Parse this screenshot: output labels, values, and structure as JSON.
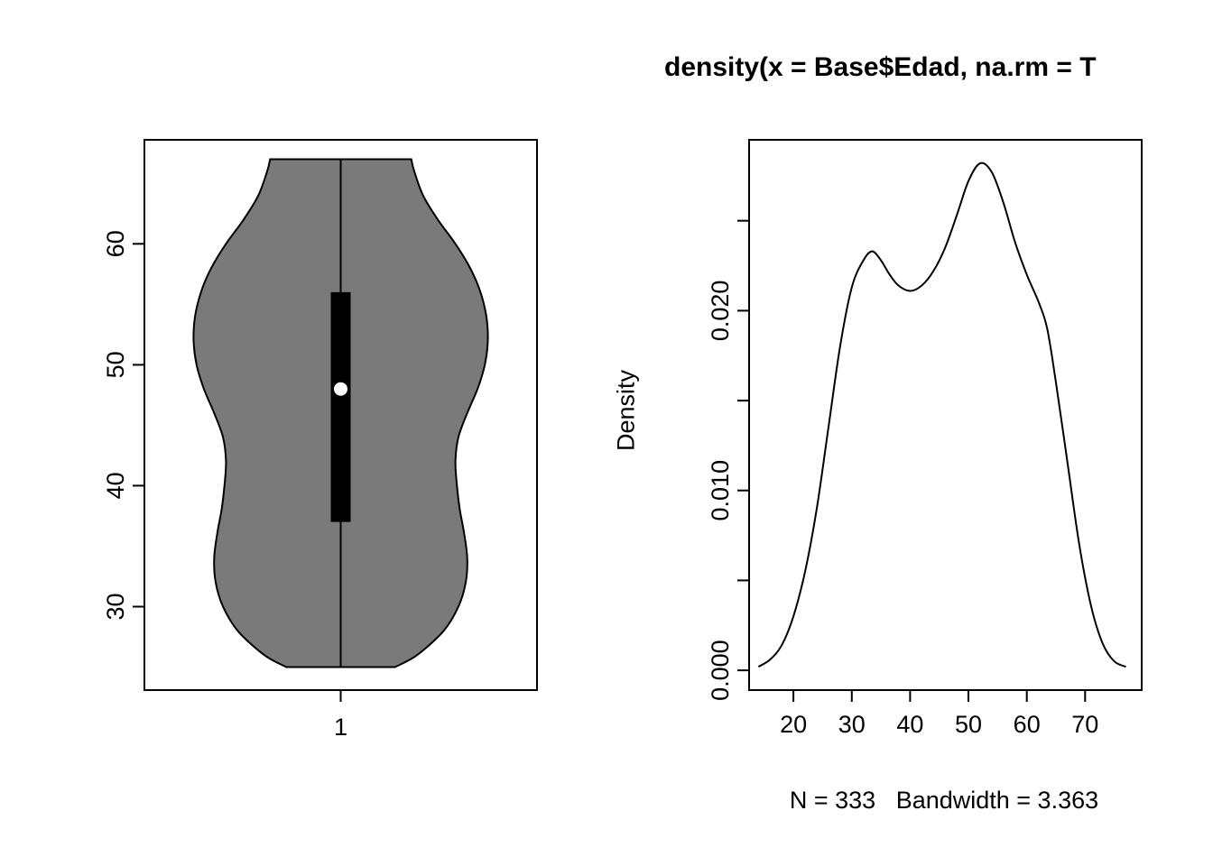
{
  "figure": {
    "background": "#ffffff",
    "text_color": "#000000"
  },
  "chart_data": [
    {
      "type": "violin",
      "title": "",
      "xlabel": "",
      "ylabel": "",
      "categories": [
        "1"
      ],
      "ylim": [
        23.1,
        68.6
      ],
      "yticks": [
        30,
        40,
        50,
        60
      ],
      "violin": {
        "fill": "#7a7a7a",
        "stroke": "#000000",
        "min": 25,
        "max": 67,
        "profile": [
          [
            25,
            0.37
          ],
          [
            26,
            0.52
          ],
          [
            28,
            0.7
          ],
          [
            30,
            0.8
          ],
          [
            32,
            0.85
          ],
          [
            34,
            0.86
          ],
          [
            36,
            0.84
          ],
          [
            38,
            0.81
          ],
          [
            40,
            0.79
          ],
          [
            42,
            0.78
          ],
          [
            44,
            0.8
          ],
          [
            46,
            0.86
          ],
          [
            48,
            0.93
          ],
          [
            50,
            0.98
          ],
          [
            52,
            1.0
          ],
          [
            54,
            0.99
          ],
          [
            56,
            0.95
          ],
          [
            58,
            0.88
          ],
          [
            60,
            0.78
          ],
          [
            62,
            0.66
          ],
          [
            64,
            0.56
          ],
          [
            66,
            0.5
          ],
          [
            67,
            0.48
          ]
        ]
      },
      "box": {
        "whisker_low": 25,
        "whisker_high": 67,
        "q1": 37,
        "median": 48,
        "q3": 56,
        "box_color": "#000000",
        "median_dot_color": "#ffffff"
      }
    },
    {
      "type": "line",
      "title": "density(x = Base$Edad, na.rm = T",
      "ylabel": "Density",
      "xlabel": "N = 333   Bandwidth = 3.363",
      "n": 333,
      "bandwidth": 3.363,
      "line_color": "#000000",
      "xlim": [
        12.4,
        79.7
      ],
      "ylim": [
        -0.0011,
        0.0295
      ],
      "xticks": [
        20,
        30,
        40,
        50,
        60,
        70
      ],
      "yticks": [
        0,
        0.005,
        0.01,
        0.015,
        0.02,
        0.025
      ],
      "ytick_labels": [
        "0.000",
        "",
        "0.010",
        "",
        "0.020",
        ""
      ],
      "x": [
        14,
        16,
        18,
        20,
        22,
        24,
        26,
        28,
        30,
        32,
        33.5,
        35,
        36.5,
        38,
        40,
        42,
        44,
        46,
        48,
        50,
        52,
        54,
        56,
        58,
        60,
        62,
        63.5,
        65,
        67,
        69,
        71,
        73,
        75,
        77
      ],
      "y": [
        0.0002,
        0.0006,
        0.0014,
        0.003,
        0.0055,
        0.009,
        0.0135,
        0.018,
        0.0213,
        0.0228,
        0.0233,
        0.0228,
        0.022,
        0.0214,
        0.0211,
        0.0214,
        0.0222,
        0.0235,
        0.0253,
        0.0272,
        0.0282,
        0.0277,
        0.026,
        0.0238,
        0.022,
        0.0205,
        0.019,
        0.016,
        0.0115,
        0.007,
        0.0036,
        0.0015,
        0.0005,
        0.0002
      ]
    }
  ]
}
